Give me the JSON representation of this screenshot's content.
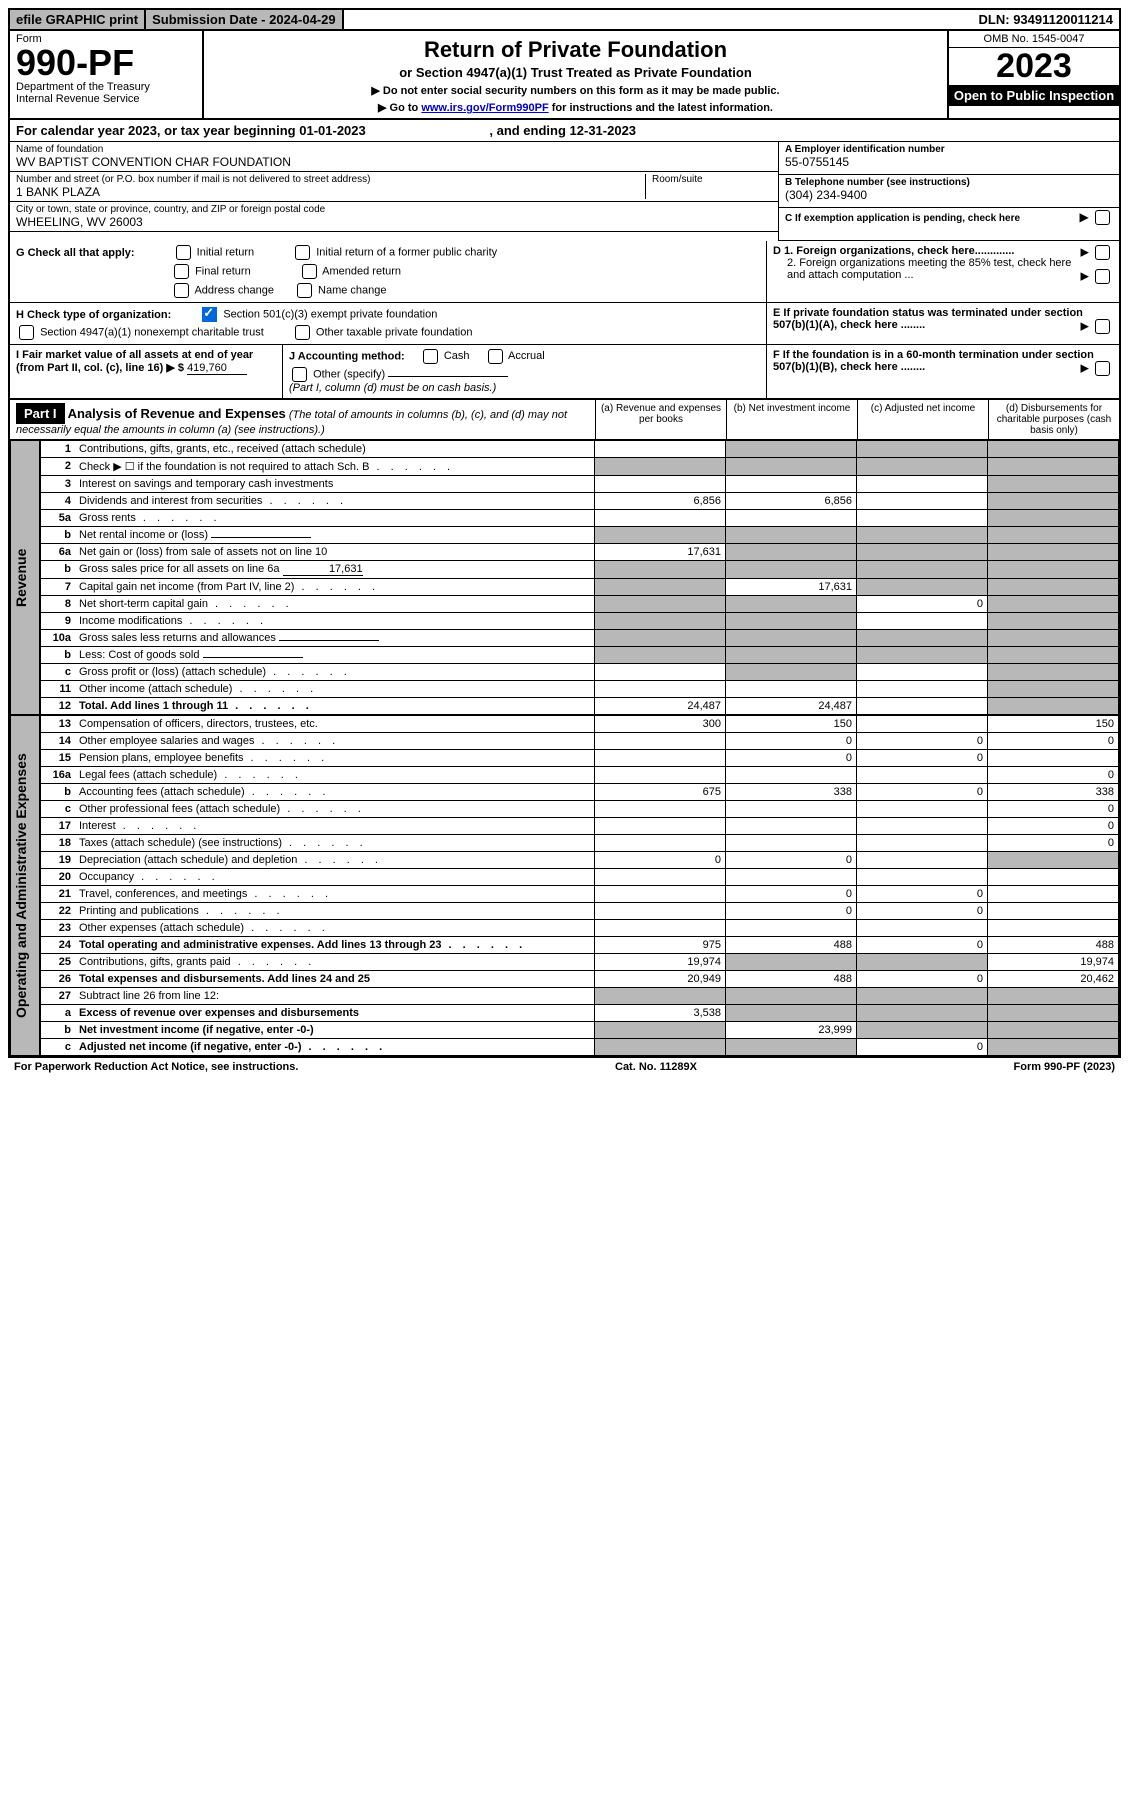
{
  "topbar": {
    "efile": "efile GRAPHIC print",
    "subdate_label": "Submission Date - ",
    "subdate": "2024-04-29",
    "dln_label": "DLN: ",
    "dln": "93491120011214"
  },
  "header": {
    "form_word": "Form",
    "form_num": "990-PF",
    "dept": "Department of the Treasury",
    "irs": "Internal Revenue Service",
    "title": "Return of Private Foundation",
    "subtitle": "or Section 4947(a)(1) Trust Treated as Private Foundation",
    "instr1": "▶ Do not enter social security numbers on this form as it may be made public.",
    "instr2_pre": "▶ Go to ",
    "instr2_link": "www.irs.gov/Form990PF",
    "instr2_post": " for instructions and the latest information.",
    "omb": "OMB No. 1545-0047",
    "year": "2023",
    "open": "Open to Public Inspection"
  },
  "calyear": {
    "pre": "For calendar year 2023, or tax year beginning ",
    "begin": "01-01-2023",
    "mid": " , and ending ",
    "end": "12-31-2023"
  },
  "foundation": {
    "name_label": "Name of foundation",
    "name": "WV BAPTIST CONVENTION CHAR FOUNDATION",
    "addr_label": "Number and street (or P.O. box number if mail is not delivered to street address)",
    "addr": "1 BANK PLAZA",
    "room_label": "Room/suite",
    "city_label": "City or town, state or province, country, and ZIP or foreign postal code",
    "city": "WHEELING, WV  26003",
    "ein_label": "A Employer identification number",
    "ein": "55-0755145",
    "phone_label": "B Telephone number (see instructions)",
    "phone": "(304) 234-9400",
    "c_label": "C If exemption application is pending, check here",
    "d1": "D 1. Foreign organizations, check here.............",
    "d2": "2. Foreign organizations meeting the 85% test, check here and attach computation ...",
    "e_label": "E  If private foundation status was terminated under section 507(b)(1)(A), check here ........",
    "f_label": "F  If the foundation is in a 60-month termination under section 507(b)(1)(B), check here ........"
  },
  "checks": {
    "g_label": "G Check all that apply:",
    "initial": "Initial return",
    "final": "Final return",
    "addrchg": "Address change",
    "initial_former": "Initial return of a former public charity",
    "amended": "Amended return",
    "namechg": "Name change",
    "h_label": "H Check type of organization:",
    "h1": "Section 501(c)(3) exempt private foundation",
    "h2": "Section 4947(a)(1) nonexempt charitable trust",
    "h3": "Other taxable private foundation",
    "i_label": "I Fair market value of all assets at end of year (from Part II, col. (c), line 16) ▶ $",
    "i_val": "419,760",
    "j_label": "J Accounting method:",
    "j_cash": "Cash",
    "j_accr": "Accrual",
    "j_other": "Other (specify)",
    "j_note": "(Part I, column (d) must be on cash basis.)"
  },
  "part1": {
    "label": "Part I",
    "title": "Analysis of Revenue and Expenses",
    "note": " (The total of amounts in columns (b), (c), and (d) may not necessarily equal the amounts in column (a) (see instructions).)",
    "col_a": "(a)   Revenue and expenses per books",
    "col_b": "(b)   Net investment income",
    "col_c": "(c)   Adjusted net income",
    "col_d": "(d)   Disbursements for charitable purposes (cash basis only)"
  },
  "side": {
    "revenue": "Revenue",
    "expenses": "Operating and Administrative Expenses"
  },
  "rows": [
    {
      "n": "1",
      "d": "Contributions, gifts, grants, etc., received (attach schedule)",
      "a": "",
      "b": "shaded",
      "c": "shaded",
      "dd": "shaded"
    },
    {
      "n": "2",
      "d": "Check ▶ ☐ if the foundation is not required to attach Sch. B",
      "a": "shaded",
      "b": "shaded",
      "c": "shaded",
      "dd": "shaded",
      "dotted": true
    },
    {
      "n": "3",
      "d": "Interest on savings and temporary cash investments",
      "a": "",
      "b": "",
      "c": "",
      "dd": "shaded"
    },
    {
      "n": "4",
      "d": "Dividends and interest from securities",
      "a": "6,856",
      "b": "6,856",
      "c": "",
      "dd": "shaded",
      "dotted": true
    },
    {
      "n": "5a",
      "d": "Gross rents",
      "a": "",
      "b": "",
      "c": "",
      "dd": "shaded",
      "dotted": true
    },
    {
      "n": "b",
      "d": "Net rental income or (loss)",
      "a": "shaded",
      "b": "shaded",
      "c": "shaded",
      "dd": "shaded",
      "inline": true
    },
    {
      "n": "6a",
      "d": "Net gain or (loss) from sale of assets not on line 10",
      "a": "17,631",
      "b": "shaded",
      "c": "shaded",
      "dd": "shaded"
    },
    {
      "n": "b",
      "d": "Gross sales price for all assets on line 6a",
      "a": "shaded",
      "b": "shaded",
      "c": "shaded",
      "dd": "shaded",
      "inline": true,
      "inlineval": "17,631"
    },
    {
      "n": "7",
      "d": "Capital gain net income (from Part IV, line 2)",
      "a": "shaded",
      "b": "17,631",
      "c": "shaded",
      "dd": "shaded",
      "dotted": true
    },
    {
      "n": "8",
      "d": "Net short-term capital gain",
      "a": "shaded",
      "b": "shaded",
      "c": "0",
      "dd": "shaded",
      "dotted": true
    },
    {
      "n": "9",
      "d": "Income modifications",
      "a": "shaded",
      "b": "shaded",
      "c": "",
      "dd": "shaded",
      "dotted": true
    },
    {
      "n": "10a",
      "d": "Gross sales less returns and allowances",
      "a": "shaded",
      "b": "shaded",
      "c": "shaded",
      "dd": "shaded",
      "inline": true
    },
    {
      "n": "b",
      "d": "Less: Cost of goods sold",
      "a": "shaded",
      "b": "shaded",
      "c": "shaded",
      "dd": "shaded",
      "inline": true,
      "dotted": true
    },
    {
      "n": "c",
      "d": "Gross profit or (loss) (attach schedule)",
      "a": "",
      "b": "shaded",
      "c": "",
      "dd": "shaded",
      "dotted": true
    },
    {
      "n": "11",
      "d": "Other income (attach schedule)",
      "a": "",
      "b": "",
      "c": "",
      "dd": "shaded",
      "dotted": true
    },
    {
      "n": "12",
      "d": "Total. Add lines 1 through 11",
      "a": "24,487",
      "b": "24,487",
      "c": "",
      "dd": "shaded",
      "bold": true,
      "dotted": true
    }
  ],
  "exp_rows": [
    {
      "n": "13",
      "d": "Compensation of officers, directors, trustees, etc.",
      "a": "300",
      "b": "150",
      "c": "",
      "dd": "150"
    },
    {
      "n": "14",
      "d": "Other employee salaries and wages",
      "a": "",
      "b": "0",
      "c": "0",
      "dd": "0",
      "dotted": true
    },
    {
      "n": "15",
      "d": "Pension plans, employee benefits",
      "a": "",
      "b": "0",
      "c": "0",
      "dd": "",
      "dotted": true
    },
    {
      "n": "16a",
      "d": "Legal fees (attach schedule)",
      "a": "",
      "b": "",
      "c": "",
      "dd": "0",
      "dotted": true
    },
    {
      "n": "b",
      "d": "Accounting fees (attach schedule)",
      "a": "675",
      "b": "338",
      "c": "0",
      "dd": "338",
      "dotted": true
    },
    {
      "n": "c",
      "d": "Other professional fees (attach schedule)",
      "a": "",
      "b": "",
      "c": "",
      "dd": "0",
      "dotted": true
    },
    {
      "n": "17",
      "d": "Interest",
      "a": "",
      "b": "",
      "c": "",
      "dd": "0",
      "dotted": true
    },
    {
      "n": "18",
      "d": "Taxes (attach schedule) (see instructions)",
      "a": "",
      "b": "",
      "c": "",
      "dd": "0",
      "dotted": true
    },
    {
      "n": "19",
      "d": "Depreciation (attach schedule) and depletion",
      "a": "0",
      "b": "0",
      "c": "",
      "dd": "shaded",
      "dotted": true
    },
    {
      "n": "20",
      "d": "Occupancy",
      "a": "",
      "b": "",
      "c": "",
      "dd": "",
      "dotted": true
    },
    {
      "n": "21",
      "d": "Travel, conferences, and meetings",
      "a": "",
      "b": "0",
      "c": "0",
      "dd": "",
      "dotted": true
    },
    {
      "n": "22",
      "d": "Printing and publications",
      "a": "",
      "b": "0",
      "c": "0",
      "dd": "",
      "dotted": true
    },
    {
      "n": "23",
      "d": "Other expenses (attach schedule)",
      "a": "",
      "b": "",
      "c": "",
      "dd": "",
      "dotted": true
    },
    {
      "n": "24",
      "d": "Total operating and administrative expenses. Add lines 13 through 23",
      "a": "975",
      "b": "488",
      "c": "0",
      "dd": "488",
      "bold": true,
      "dotted": true
    },
    {
      "n": "25",
      "d": "Contributions, gifts, grants paid",
      "a": "19,974",
      "b": "shaded",
      "c": "shaded",
      "dd": "19,974",
      "dotted": true
    },
    {
      "n": "26",
      "d": "Total expenses and disbursements. Add lines 24 and 25",
      "a": "20,949",
      "b": "488",
      "c": "0",
      "dd": "20,462",
      "bold": true
    },
    {
      "n": "27",
      "d": "Subtract line 26 from line 12:",
      "a": "shaded",
      "b": "shaded",
      "c": "shaded",
      "dd": "shaded"
    },
    {
      "n": "a",
      "d": "Excess of revenue over expenses and disbursements",
      "a": "3,538",
      "b": "shaded",
      "c": "shaded",
      "dd": "shaded",
      "bold": true
    },
    {
      "n": "b",
      "d": "Net investment income (if negative, enter -0-)",
      "a": "shaded",
      "b": "23,999",
      "c": "shaded",
      "dd": "shaded",
      "bold": true
    },
    {
      "n": "c",
      "d": "Adjusted net income (if negative, enter -0-)",
      "a": "shaded",
      "b": "shaded",
      "c": "0",
      "dd": "shaded",
      "bold": true,
      "dotted": true
    }
  ],
  "footer": {
    "left": "For Paperwork Reduction Act Notice, see instructions.",
    "mid": "Cat. No. 11289X",
    "right": "Form 990-PF (2023)"
  }
}
